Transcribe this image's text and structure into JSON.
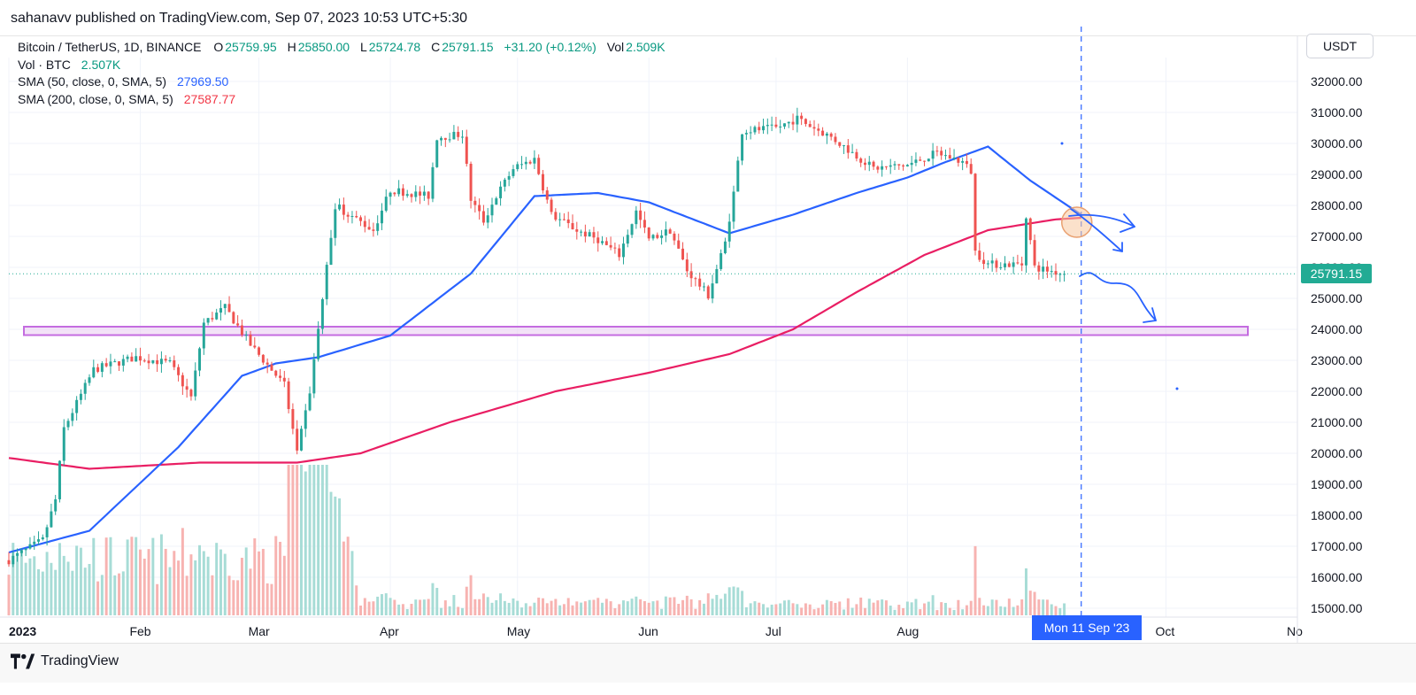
{
  "header": {
    "publisher": "sahanavv published on TradingView.com, Sep 07, 2023 10:53 UTC+5:30"
  },
  "legend": {
    "symbol": "Bitcoin / TetherUS, 1D, BINANCE",
    "ohlc": [
      {
        "k": "O",
        "v": "25759.95"
      },
      {
        "k": "H",
        "v": "25850.00"
      },
      {
        "k": "L",
        "v": "25724.78"
      },
      {
        "k": "C",
        "v": "25791.15"
      }
    ],
    "change": "+31.20 (+0.12%)",
    "vol_label": "Vol",
    "vol_value": "2.509K",
    "vol_row": {
      "label": "Vol · BTC",
      "value": "2.507K"
    },
    "sma50": {
      "label": "SMA (50, close, 0, SMA, 5)",
      "value": "27969.50",
      "color": "#2962ff"
    },
    "sma200": {
      "label": "SMA (200, close, 0, SMA, 5)",
      "value": "27587.77",
      "color": "#f23645"
    }
  },
  "price_axis": {
    "currency": "USDT",
    "last_price": "25791.15"
  },
  "time_axis": {
    "crosshair_date": "Mon 11 Sep '23"
  },
  "brand": {
    "name": "TradingView"
  },
  "colors": {
    "up": "#26a69a",
    "down": "#ef5350",
    "sma50": "#2962ff",
    "sma200": "#e91e63",
    "support_zone": "#c46ce0",
    "annotation": "#2962ff"
  },
  "chart_data": {
    "type": "candlestick",
    "symbol": "BTCUSDT",
    "exchange": "BINANCE",
    "interval": "1D",
    "y_scale": "linear",
    "ylim": [
      14800,
      32600
    ],
    "y_ticks": [
      15000,
      16000,
      17000,
      18000,
      19000,
      20000,
      21000,
      22000,
      23000,
      24000,
      25000,
      26000,
      27000,
      28000,
      29000,
      30000,
      31000,
      32000
    ],
    "x_range": [
      "2023-01-01",
      "2023-11-01"
    ],
    "x_ticks": [
      {
        "date": "2023-01-01",
        "label": "2023"
      },
      {
        "date": "2023-02-01",
        "label": "Feb"
      },
      {
        "date": "2023-03-01",
        "label": "Mar"
      },
      {
        "date": "2023-04-01",
        "label": "Apr"
      },
      {
        "date": "2023-05-01",
        "label": "May"
      },
      {
        "date": "2023-06-01",
        "label": "Jun"
      },
      {
        "date": "2023-07-01",
        "label": "Jul"
      },
      {
        "date": "2023-08-01",
        "label": "Aug"
      },
      {
        "date": "2023-10-01",
        "label": "Oct"
      },
      {
        "date": "2023-11-01",
        "label": "No"
      }
    ],
    "price_anchors": [
      [
        "2023-01-01",
        16550
      ],
      [
        "2023-01-09",
        17200
      ],
      [
        "2023-01-12",
        18500
      ],
      [
        "2023-01-14",
        20800
      ],
      [
        "2023-01-21",
        22700
      ],
      [
        "2023-01-31",
        23100
      ],
      [
        "2023-02-08",
        22900
      ],
      [
        "2023-02-13",
        21800
      ],
      [
        "2023-02-16",
        24200
      ],
      [
        "2023-02-21",
        24700
      ],
      [
        "2023-02-27",
        23500
      ],
      [
        "2023-03-07",
        22200
      ],
      [
        "2023-03-10",
        20000
      ],
      [
        "2023-03-13",
        22000
      ],
      [
        "2023-03-16",
        25000
      ],
      [
        "2023-03-19",
        28000
      ],
      [
        "2023-03-28",
        27200
      ],
      [
        "2023-04-01",
        28500
      ],
      [
        "2023-04-10",
        28300
      ],
      [
        "2023-04-12",
        30200
      ],
      [
        "2023-04-18",
        30300
      ],
      [
        "2023-04-20",
        28200
      ],
      [
        "2023-04-23",
        27500
      ],
      [
        "2023-04-26",
        28300
      ],
      [
        "2023-04-30",
        29200
      ],
      [
        "2023-05-05",
        29500
      ],
      [
        "2023-05-09",
        27700
      ],
      [
        "2023-05-15",
        27200
      ],
      [
        "2023-05-20",
        26900
      ],
      [
        "2023-05-25",
        26400
      ],
      [
        "2023-05-29",
        27800
      ],
      [
        "2023-06-01",
        26900
      ],
      [
        "2023-06-06",
        27200
      ],
      [
        "2023-06-10",
        25900
      ],
      [
        "2023-06-15",
        25100
      ],
      [
        "2023-06-19",
        26800
      ],
      [
        "2023-06-21",
        28400
      ],
      [
        "2023-06-23",
        30400
      ],
      [
        "2023-07-01",
        30500
      ],
      [
        "2023-07-06",
        30800
      ],
      [
        "2023-07-14",
        30200
      ],
      [
        "2023-07-24",
        29200
      ],
      [
        "2023-08-01",
        29300
      ],
      [
        "2023-08-08",
        29700
      ],
      [
        "2023-08-14",
        29400
      ],
      [
        "2023-08-16",
        29100
      ],
      [
        "2023-08-17",
        26500
      ],
      [
        "2023-08-20",
        26100
      ],
      [
        "2023-08-28",
        26100
      ],
      [
        "2023-08-29",
        27700
      ],
      [
        "2023-08-31",
        26000
      ],
      [
        "2023-09-07",
        25790
      ]
    ],
    "last_close": 25791.15,
    "sma50_anchors": [
      [
        "2023-01-01",
        16800
      ],
      [
        "2023-01-20",
        17500
      ],
      [
        "2023-02-10",
        20200
      ],
      [
        "2023-02-25",
        22500
      ],
      [
        "2023-03-05",
        22900
      ],
      [
        "2023-03-15",
        23100
      ],
      [
        "2023-04-01",
        23800
      ],
      [
        "2023-04-20",
        25800
      ],
      [
        "2023-05-05",
        28300
      ],
      [
        "2023-05-20",
        28400
      ],
      [
        "2023-06-01",
        28100
      ],
      [
        "2023-06-20",
        27100
      ],
      [
        "2023-07-05",
        27700
      ],
      [
        "2023-07-20",
        28400
      ],
      [
        "2023-08-01",
        28900
      ],
      [
        "2023-08-10",
        29400
      ],
      [
        "2023-08-20",
        29900
      ],
      [
        "2023-08-30",
        28800
      ],
      [
        "2023-09-11",
        27700
      ]
    ],
    "sma200_anchors": [
      [
        "2023-01-01",
        19850
      ],
      [
        "2023-01-20",
        19500
      ],
      [
        "2023-02-15",
        19700
      ],
      [
        "2023-03-10",
        19700
      ],
      [
        "2023-03-25",
        20000
      ],
      [
        "2023-04-15",
        21000
      ],
      [
        "2023-05-10",
        22000
      ],
      [
        "2023-06-01",
        22600
      ],
      [
        "2023-06-20",
        23200
      ],
      [
        "2023-07-05",
        24000
      ],
      [
        "2023-07-20",
        25200
      ],
      [
        "2023-08-05",
        26400
      ],
      [
        "2023-08-20",
        27200
      ],
      [
        "2023-09-05",
        27550
      ],
      [
        "2023-09-11",
        27600
      ]
    ],
    "support_zone": [
      23900,
      24000
    ],
    "crosshair_date": "2023-09-11"
  }
}
